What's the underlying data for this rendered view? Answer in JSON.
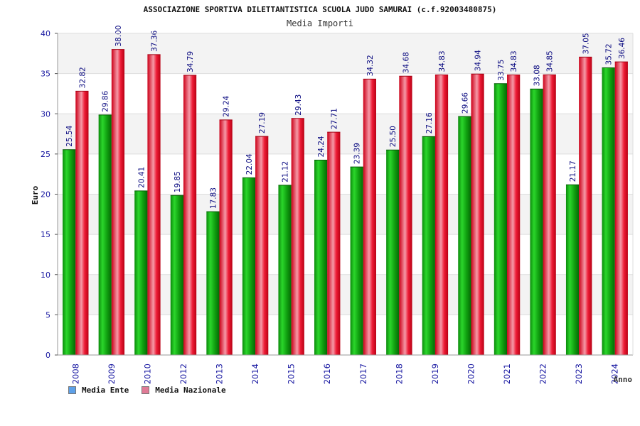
{
  "colors": {
    "ente": "#11a611",
    "nazionale": "#e8102a",
    "legend_ente": "#5da0e8",
    "legend_nazionale": "#e07a96",
    "axis_text": "#1515a0",
    "band": "#f3f3f3",
    "grid": "#dddddd",
    "value_label": "#0a0a80"
  },
  "chart_data": {
    "type": "bar",
    "title": "ASSOCIAZIONE SPORTIVA DILETTANTISTICA SCUOLA JUDO SAMURAI (c.f.92003480875)",
    "subtitle": "Media Importi",
    "xlabel": "Anno",
    "ylabel": "Euro",
    "ylim": [
      0,
      40
    ],
    "yticks": [
      0,
      5,
      10,
      15,
      20,
      25,
      30,
      35,
      40
    ],
    "categories": [
      "2008",
      "2009",
      "2010",
      "2012",
      "2013",
      "2014",
      "2015",
      "2016",
      "2017",
      "2018",
      "2019",
      "2020",
      "2021",
      "2022",
      "2023",
      "2024"
    ],
    "series": [
      {
        "name": "Media Ente",
        "values": [
          25.54,
          29.86,
          20.41,
          19.85,
          17.83,
          22.04,
          21.12,
          24.24,
          23.39,
          25.5,
          27.16,
          29.66,
          33.75,
          33.08,
          21.17,
          35.72
        ]
      },
      {
        "name": "Media Nazionale",
        "values": [
          32.82,
          38.0,
          37.36,
          34.79,
          29.24,
          27.19,
          29.43,
          27.71,
          34.32,
          34.68,
          34.83,
          34.94,
          34.83,
          34.85,
          37.05,
          36.46
        ]
      }
    ],
    "value_labels": [
      [
        "25.54",
        "29.86",
        "20.41",
        "19.85",
        "17.83",
        "22.04",
        "21.12",
        "24.24",
        "23.39",
        "25.50",
        "27.16",
        "29.66",
        "33.75",
        "33.08",
        "21.17",
        "35.72"
      ],
      [
        "32.82",
        "38.00",
        "37.36",
        "34.79",
        "29.24",
        "27.19",
        "29.43",
        "27.71",
        "34.32",
        "34.68",
        "34.83",
        "34.94",
        "34.83",
        "34.85",
        "37.05",
        "36.46"
      ]
    ],
    "grid": true,
    "legend_position": "bottom-left"
  }
}
